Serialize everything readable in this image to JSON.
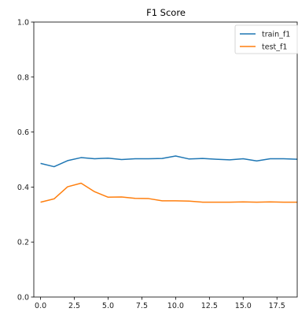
{
  "chart_data": {
    "type": "line",
    "title": "F1 Score",
    "xlabel": "",
    "ylabel": "",
    "xlim": [
      -0.5,
      19.0
    ],
    "ylim": [
      0.0,
      1.0
    ],
    "xticks": [
      "0.0",
      "2.5",
      "5.0",
      "7.5",
      "10.0",
      "12.5",
      "15.0",
      "17.5"
    ],
    "yticks": [
      "0.0",
      "0.2",
      "0.4",
      "0.6",
      "0.8",
      "1.0"
    ],
    "grid": false,
    "legend_position": "top-right",
    "x": [
      0,
      1,
      2,
      3,
      4,
      5,
      6,
      7,
      8,
      9,
      10,
      11,
      12,
      13,
      14,
      15,
      16,
      17,
      18,
      19
    ],
    "series": [
      {
        "name": "train_f1",
        "color": "#1f77b4",
        "values": [
          0.486,
          0.474,
          0.496,
          0.507,
          0.503,
          0.505,
          0.5,
          0.503,
          0.503,
          0.504,
          0.513,
          0.502,
          0.504,
          0.501,
          0.499,
          0.503,
          0.495,
          0.503,
          0.503,
          0.501
        ]
      },
      {
        "name": "test_f1",
        "color": "#ff7f0e",
        "values": [
          0.345,
          0.357,
          0.401,
          0.414,
          0.383,
          0.363,
          0.364,
          0.359,
          0.358,
          0.35,
          0.35,
          0.349,
          0.345,
          0.345,
          0.345,
          0.346,
          0.345,
          0.346,
          0.345,
          0.345
        ]
      }
    ]
  }
}
